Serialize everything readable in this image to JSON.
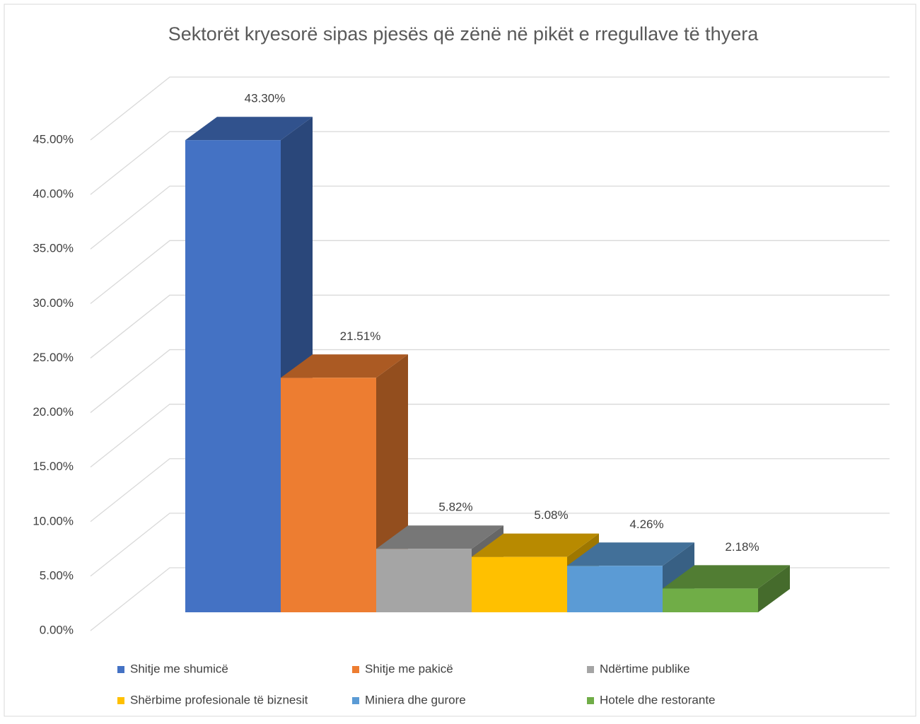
{
  "chart_data": {
    "type": "bar3d",
    "title": "Sektorët kryesorë sipas pjesës që zënë në pikët e rregullave të thyera",
    "series": [
      {
        "name": "Shitje me shumicë",
        "color": "#4472c4",
        "values": [
          43.3
        ],
        "value_labels": [
          "43.30%"
        ]
      },
      {
        "name": "Shitje me pakicë",
        "color": "#ed7d31",
        "values": [
          21.51
        ],
        "value_labels": [
          "21.51%"
        ]
      },
      {
        "name": "Ndërtime publike",
        "color": "#a5a5a5",
        "values": [
          5.82
        ],
        "value_labels": [
          "5.82%"
        ]
      },
      {
        "name": "Shërbime profesionale të biznesit",
        "color": "#ffc000",
        "values": [
          5.08
        ],
        "value_labels": [
          "5.08%"
        ]
      },
      {
        "name": "Miniera dhe gurore",
        "color": "#5b9bd5",
        "values": [
          4.26
        ],
        "value_labels": [
          "4.26%"
        ]
      },
      {
        "name": "Hotele dhe restorante",
        "color": "#70ad47",
        "values": [
          2.18
        ],
        "value_labels": [
          "2.18%"
        ]
      }
    ],
    "ylim": [
      0,
      45
    ],
    "yticks": [
      {
        "value": 0,
        "label": "0.00%"
      },
      {
        "value": 5,
        "label": "5.00%"
      },
      {
        "value": 10,
        "label": "10.00%"
      },
      {
        "value": 15,
        "label": "15.00%"
      },
      {
        "value": 20,
        "label": "20.00%"
      },
      {
        "value": 25,
        "label": "25.00%"
      },
      {
        "value": 30,
        "label": "30.00%"
      },
      {
        "value": 35,
        "label": "35.00%"
      },
      {
        "value": 40,
        "label": "40.00%"
      },
      {
        "value": 45,
        "label": "45.00%"
      }
    ],
    "grid": true,
    "legend": "bottom"
  }
}
